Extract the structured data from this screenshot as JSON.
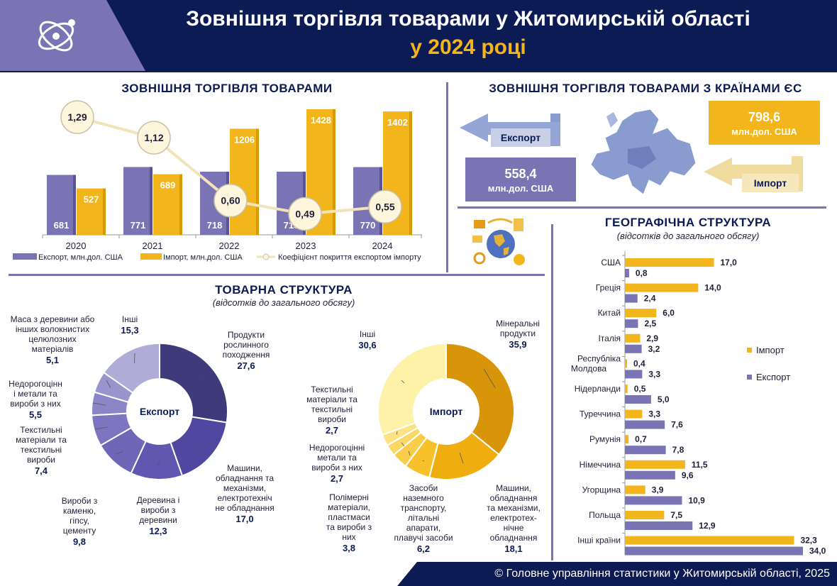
{
  "header": {
    "title_line1": "Зовнішня торгівля товарами у Житомирській області",
    "title_line2": "у 2024 році"
  },
  "colors": {
    "navy": "#0d1b55",
    "violet": "#7b74b4",
    "gold": "#f2b51c",
    "export_bar": "#7b74b4",
    "import_bar": "#f2b51c"
  },
  "footer": "© Головне управління статистики у Житомирській області, 2025",
  "eu": {
    "title": "ЗОВНІШНЯ ТОРГІВЛЯ ТОВАРАМИ З КРАЇНАМИ ЄС",
    "export_label": "Експорт",
    "export_value": "558,4",
    "export_unit": "млн.дол. США",
    "import_label": "Імпорт",
    "import_value": "798,6",
    "import_unit": "млн.дол. США"
  },
  "icons": [
    "logo-icon",
    "europe-map-icon",
    "globe-finance-icon",
    "export-arrow-icon",
    "import-arrow-icon"
  ],
  "chart_data": [
    {
      "type": "bar",
      "title": "ЗОВНІШНЯ ТОРГІВЛЯ ТОВАРАМИ",
      "categories": [
        "2020",
        "2021",
        "2022",
        "2023",
        "2024"
      ],
      "series": [
        {
          "name": "Експорт, млн.дол. США",
          "values": [
            681,
            771,
            718,
            718,
            770
          ],
          "labels": [
            "681",
            "771",
            "718",
            "718",
            "770"
          ]
        },
        {
          "name": "Імпорт, млн.дол. США",
          "values": [
            527,
            689,
            1206,
            1428,
            1402
          ],
          "labels": [
            "527",
            "689",
            "1206",
            "1428",
            "1402"
          ]
        }
      ],
      "line_series": {
        "name": "Коефіцієнт покриття експортом імпорту",
        "values": [
          1.29,
          1.12,
          0.6,
          0.49,
          0.55
        ],
        "labels": [
          "1,29",
          "1,12",
          "0,60",
          "0,49",
          "0,55"
        ]
      },
      "legend_placement": "bottom",
      "ylim": [
        0,
        1500
      ]
    },
    {
      "type": "pie",
      "title": "ТОВАРНА СТРУКТУРА",
      "subtitle": "(відсотків до загального обсягу)",
      "name": "Експорт",
      "slices": [
        {
          "label": "Продукти рослинного походження",
          "value": 27.6,
          "value_label": "27,6",
          "color": "#3f3a7a"
        },
        {
          "label": "Машини, обладнання та механізми, електротехнічне обладнання",
          "value": 17.0,
          "value_label": "17,0",
          "color": "#4f47a0"
        },
        {
          "label": "Деревина і вироби з деревини",
          "value": 12.3,
          "value_label": "12,3",
          "color": "#6156b0"
        },
        {
          "label": "Вироби з каменю, гіпсу, цементу",
          "value": 9.8,
          "value_label": "9,8",
          "color": "#6f66b8"
        },
        {
          "label": "Текстильні матеріали та текстильні вироби",
          "value": 7.4,
          "value_label": "7,4",
          "color": "#7d75bf"
        },
        {
          "label": "Недорогоцінні метали та вироби з них",
          "value": 5.5,
          "value_label": "5,5",
          "color": "#8b84c6"
        },
        {
          "label": "Маса з деревини або інших волокнистих целюлозних матеріалів",
          "value": 5.1,
          "value_label": "5,1",
          "color": "#9a94cd"
        },
        {
          "label": "Інші",
          "value": 15.3,
          "value_label": "15,3",
          "color": "#b0acd8"
        }
      ]
    },
    {
      "type": "pie",
      "name": "Імпорт",
      "slices": [
        {
          "label": "Мінеральні продукти",
          "value": 35.9,
          "value_label": "35,9",
          "color": "#d9950a"
        },
        {
          "label": "Машини, обладнання та механізми, електротехнічне обладнання",
          "value": 18.1,
          "value_label": "18,1",
          "color": "#f0ad0f"
        },
        {
          "label": "Засоби наземного транспорту, літальні апарати, плавучі засоби",
          "value": 6.2,
          "value_label": "6,2",
          "color": "#f6c12b"
        },
        {
          "label": "Полімерні матеріали, пластмаси та вироби з них",
          "value": 3.8,
          "value_label": "3,8",
          "color": "#f8cd4a"
        },
        {
          "label": "Недорогоцінні метали та вироби з них",
          "value": 2.7,
          "value_label": "2,7",
          "color": "#f9d866"
        },
        {
          "label": "Текстильні матеріали та текстильні вироби",
          "value": 2.7,
          "value_label": "2,7",
          "color": "#fbe385"
        },
        {
          "label": "Інші",
          "value": 30.6,
          "value_label": "30,6",
          "color": "#fdf2a8"
        }
      ]
    },
    {
      "type": "bar",
      "orientation": "horizontal",
      "title": "ГЕОГРАФІЧНА СТРУКТУРА",
      "subtitle": "(відсотків до загального обсягу)",
      "categories": [
        "США",
        "Греція",
        "Китай",
        "Італія",
        "Республіка Молдова",
        "Нідерланди",
        "Туреччина",
        "Румунія",
        "Німеччина",
        "Угорщина",
        "Польща",
        "Інші країни"
      ],
      "series": [
        {
          "name": "Імпорт",
          "values": [
            17.0,
            14.0,
            6.0,
            2.9,
            0.4,
            0.5,
            3.3,
            0.7,
            11.5,
            3.9,
            7.5,
            32.3
          ],
          "labels": [
            "17,0",
            "14,0",
            "6,0",
            "2,9",
            "0,4",
            "0,5",
            "3,3",
            "0,7",
            "11,5",
            "3,9",
            "7,5",
            "32,3"
          ]
        },
        {
          "name": "Експорт",
          "values": [
            0.8,
            2.4,
            2.5,
            3.2,
            3.3,
            5.0,
            7.6,
            7.8,
            9.6,
            10.9,
            12.9,
            34.0
          ],
          "labels": [
            "0,8",
            "2,4",
            "2,5",
            "3,2",
            "3,3",
            "5,0",
            "7,6",
            "7,8",
            "9,6",
            "10,9",
            "12,9",
            "34,0"
          ]
        }
      ],
      "legend_placement": "right"
    }
  ],
  "labels": {
    "exp_pie": [
      [
        "Продукти",
        "рослинного",
        "походження"
      ],
      [
        "Машини,",
        "обладнання та",
        "механізми,",
        "електротехніч",
        "не обладнання"
      ],
      [
        "Деревина і",
        "вироби з",
        "деревини"
      ],
      [
        "Вироби з",
        "каменю,",
        "гіпсу,",
        "цементу"
      ],
      [
        "Текстильні",
        "матеріали та",
        "текстильні",
        "вироби"
      ],
      [
        "Недорогоцінн",
        "і метали та",
        "вироби з них"
      ],
      [
        "Маса з деревини або",
        "інших волокнистих",
        "целюлозних",
        "матеріалів"
      ],
      [
        "Інші"
      ]
    ],
    "imp_pie": [
      [
        "Мінеральні",
        "продукти"
      ],
      [
        "Машини,",
        "обладнання",
        "та механізми,",
        "електротех-",
        "нічне",
        "обладнання"
      ],
      [
        "Засоби",
        "наземного",
        "транспорту,",
        "літальні",
        "апарати,",
        "плавучі засоби"
      ],
      [
        "Полімерні",
        "матеріали,",
        "пластмаси",
        "та вироби з",
        "них"
      ],
      [
        "Недорогоцінні",
        "метали та",
        "вироби з них"
      ],
      [
        "Текстильні",
        "матеріали та",
        "текстильні",
        "вироби"
      ],
      [
        "Інші"
      ]
    ],
    "geo_categories": [
      [
        "США"
      ],
      [
        "Греція"
      ],
      [
        "Китай"
      ],
      [
        "Італія"
      ],
      [
        "Республіка",
        "Молдова"
      ],
      [
        "Нідерланди"
      ],
      [
        "Туреччина"
      ],
      [
        "Румунія"
      ],
      [
        "Німеччина"
      ],
      [
        "Угорщина"
      ],
      [
        "Польща"
      ],
      [
        "Інші країни"
      ]
    ]
  }
}
